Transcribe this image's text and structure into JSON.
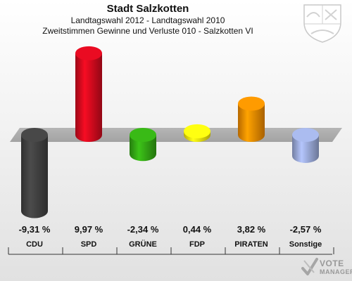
{
  "header": {
    "title": "Stadt Salzkotten",
    "subtitle1": "Landtagswahl 2012 - Landtagswahl 2010",
    "subtitle2": "Zweitstimmen Gewinne und Verluste 010 - Salzkotten VI"
  },
  "logo": {
    "line1": "VOTE",
    "line2": "MANAGER"
  },
  "chart_data": {
    "type": "bar",
    "categories": [
      "CDU",
      "SPD",
      "GRÜNE",
      "FDP",
      "PIRATEN",
      "Sonstige"
    ],
    "values": [
      -9.31,
      9.97,
      -2.34,
      0.44,
      3.82,
      -2.57
    ],
    "value_labels": [
      "-9,31 %",
      "9,97 %",
      "-2,34 %",
      "0,44 %",
      "3,82 %",
      "-2,57 %"
    ],
    "colors": [
      "#404040",
      "#d10a1e",
      "#33a614",
      "#f5e60f",
      "#f28a00",
      "#99a8d6"
    ],
    "ylim": [
      -11,
      12
    ],
    "grid": false,
    "legend": "none"
  }
}
